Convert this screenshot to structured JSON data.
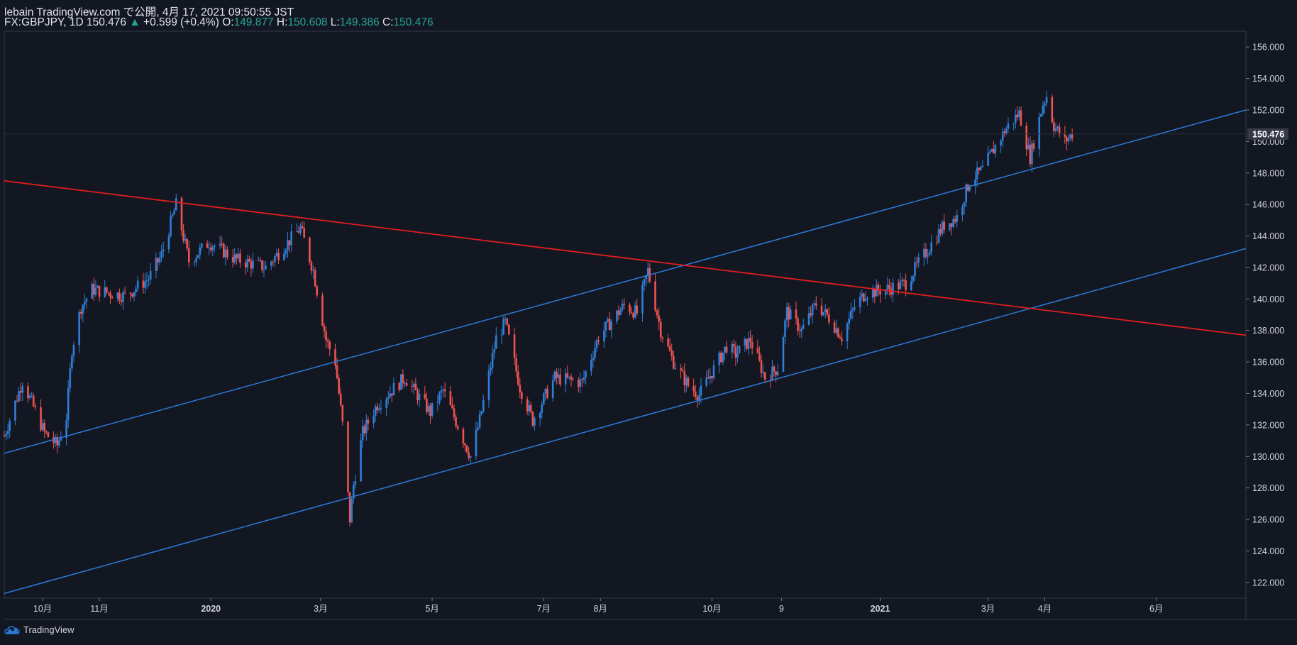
{
  "header": {
    "line1": "lebain TradingView.com で公開, 4月 17, 2021 09:50:55 JST",
    "symbol": "FX:GBPJPY, 1D",
    "last": "150.476",
    "arrow": "▲",
    "change": "+0.599 (+0.4%)",
    "o_label": "O:",
    "o_value": "149.877",
    "h_label": "H:",
    "h_value": "150.608",
    "l_label": "L:",
    "l_value": "149.386",
    "c_label": "C:",
    "c_value": "150.476"
  },
  "footer": {
    "brand": "TradingView"
  },
  "colors": {
    "background": "#131722",
    "up": "#2f7fd8",
    "down": "#ef5350",
    "channel": "#2b7bd8",
    "resistance": "#e01e1e",
    "axis_text": "#d1d4dc",
    "last_price_bg": "#363a45"
  },
  "chart_data": {
    "type": "candlestick",
    "symbol": "FX:GBPJPY",
    "timeframe": "1D",
    "y_axis": {
      "min": 121.0,
      "max": 157.0,
      "ticks": [
        122,
        124,
        126,
        128,
        130,
        132,
        134,
        136,
        138,
        140,
        142,
        144,
        146,
        148,
        150,
        152,
        154,
        156
      ],
      "tick_labels": [
        "122.000",
        "124.000",
        "126.000",
        "128.000",
        "130.000",
        "132.000",
        "134.000",
        "136.000",
        "138.000",
        "140.000",
        "142.000",
        "144.000",
        "146.000",
        "148.000",
        "150.000",
        "152.000",
        "154.000",
        "156.000"
      ],
      "last_price": 150.476,
      "last_price_label": "150.476"
    },
    "x_axis": {
      "start": "2019-09-10",
      "end": "2021-07-20",
      "ticks": [
        {
          "date": "2019-10-01",
          "label": "10月"
        },
        {
          "date": "2019-11-01",
          "label": "11月"
        },
        {
          "date": "2020-01-01",
          "label": "2020"
        },
        {
          "date": "2020-03-01",
          "label": "3月"
        },
        {
          "date": "2020-05-01",
          "label": "5月"
        },
        {
          "date": "2020-07-01",
          "label": "7月"
        },
        {
          "date": "2020-08-01",
          "label": "8月"
        },
        {
          "date": "2020-10-01",
          "label": "10月"
        },
        {
          "date": "2020-11-08",
          "label": "9"
        },
        {
          "date": "2021-01-01",
          "label": "2021"
        },
        {
          "date": "2021-03-01",
          "label": "3月"
        },
        {
          "date": "2021-04-01",
          "label": "4月"
        },
        {
          "date": "2021-06-01",
          "label": "6月"
        }
      ]
    },
    "closes_anchor": [
      [
        "2019-09-10",
        131.3
      ],
      [
        "2019-09-20",
        134.8
      ],
      [
        "2019-10-02",
        131.5
      ],
      [
        "2019-10-09",
        130.7
      ],
      [
        "2019-10-14",
        132.5
      ],
      [
        "2019-10-17",
        136.8
      ],
      [
        "2019-10-22",
        139.5
      ],
      [
        "2019-10-28",
        140.6
      ],
      [
        "2019-11-15",
        140.2
      ],
      [
        "2019-11-28",
        141.3
      ],
      [
        "2019-12-05",
        142.8
      ],
      [
        "2019-12-13",
        146.0
      ],
      [
        "2019-12-20",
        142.4
      ],
      [
        "2019-12-31",
        143.6
      ],
      [
        "2020-01-15",
        142.5
      ],
      [
        "2020-01-31",
        142.0
      ],
      [
        "2020-02-19",
        144.5
      ],
      [
        "2020-02-26",
        141.8
      ],
      [
        "2020-03-04",
        137.4
      ],
      [
        "2020-03-09",
        136.0
      ],
      [
        "2020-03-13",
        132.0
      ],
      [
        "2020-03-17",
        126.0
      ],
      [
        "2020-03-19",
        128.2
      ],
      [
        "2020-03-24",
        131.5
      ],
      [
        "2020-04-01",
        133.3
      ],
      [
        "2020-04-16",
        135.0
      ],
      [
        "2020-04-30",
        132.8
      ],
      [
        "2020-05-07",
        134.2
      ],
      [
        "2020-05-22",
        130.0
      ],
      [
        "2020-05-27",
        132.3
      ],
      [
        "2020-06-05",
        137.5
      ],
      [
        "2020-06-10",
        138.5
      ],
      [
        "2020-06-18",
        134.4
      ],
      [
        "2020-06-25",
        132.3
      ],
      [
        "2020-07-07",
        135.0
      ],
      [
        "2020-07-22",
        134.7
      ],
      [
        "2020-07-31",
        137.6
      ],
      [
        "2020-08-14",
        139.6
      ],
      [
        "2020-08-21",
        139.1
      ],
      [
        "2020-08-27",
        141.8
      ],
      [
        "2020-09-03",
        138.0
      ],
      [
        "2020-09-10",
        136.0
      ],
      [
        "2020-09-18",
        134.5
      ],
      [
        "2020-09-24",
        133.9
      ],
      [
        "2020-10-09",
        137.0
      ],
      [
        "2020-10-14",
        136.5
      ],
      [
        "2020-10-22",
        137.4
      ],
      [
        "2020-10-30",
        135.0
      ],
      [
        "2020-11-06",
        135.6
      ],
      [
        "2020-11-11",
        139.2
      ],
      [
        "2020-11-19",
        138.0
      ],
      [
        "2020-11-27",
        139.7
      ],
      [
        "2020-12-04",
        138.8
      ],
      [
        "2020-12-11",
        137.6
      ],
      [
        "2020-12-18",
        139.5
      ],
      [
        "2020-12-24",
        140.4
      ],
      [
        "2021-01-04",
        140.6
      ],
      [
        "2021-01-15",
        141.0
      ],
      [
        "2021-01-29",
        143.5
      ],
      [
        "2021-02-05",
        144.7
      ],
      [
        "2021-02-12",
        145.2
      ],
      [
        "2021-02-19",
        147.5
      ],
      [
        "2021-02-26",
        148.2
      ],
      [
        "2021-03-05",
        149.7
      ],
      [
        "2021-03-12",
        151.0
      ],
      [
        "2021-03-18",
        151.8
      ],
      [
        "2021-03-24",
        149.0
      ],
      [
        "2021-03-31",
        152.4
      ],
      [
        "2021-04-02",
        152.9
      ],
      [
        "2021-04-06",
        151.0
      ],
      [
        "2021-04-12",
        150.0
      ],
      [
        "2021-04-16",
        150.476
      ]
    ],
    "trendlines": [
      {
        "name": "channel-upper",
        "color": "#2b7bd8",
        "points": [
          [
            "2019-09-10",
            130.2
          ],
          [
            "2021-07-20",
            152.0
          ]
        ]
      },
      {
        "name": "channel-lower",
        "color": "#2b7bd8",
        "points": [
          [
            "2019-09-10",
            121.3
          ],
          [
            "2021-07-20",
            143.2
          ]
        ]
      },
      {
        "name": "resistance-line",
        "color": "#e01e1e",
        "points": [
          [
            "2019-09-10",
            147.5
          ],
          [
            "2021-07-20",
            137.7
          ]
        ]
      }
    ]
  }
}
